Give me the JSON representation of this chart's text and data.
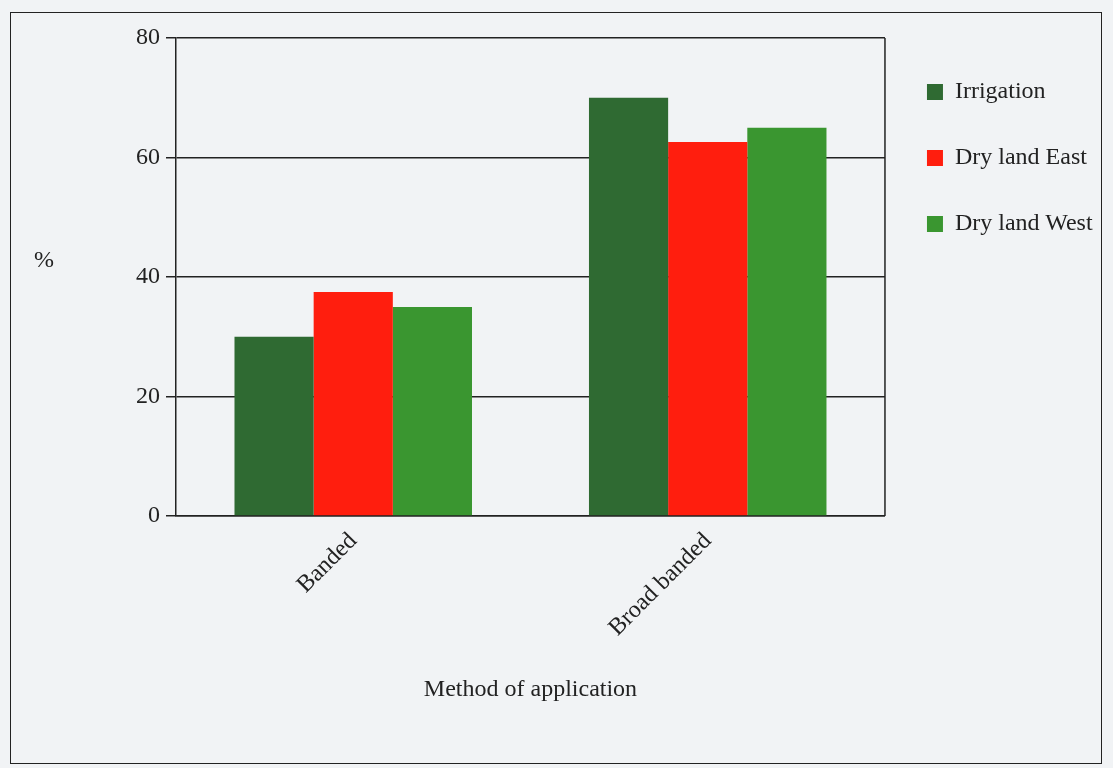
{
  "chart_data": {
    "type": "bar",
    "xlabel": "Method of application",
    "ylabel": "%",
    "categories": [
      "Banded",
      "Broad banded"
    ],
    "series": [
      {
        "name": "Irrigation",
        "color": "#2f6a32",
        "values": [
          30,
          70
        ]
      },
      {
        "name": "Dry land East",
        "color": "#ff1e0e",
        "values": [
          37.5,
          62.6
        ]
      },
      {
        "name": "Dry land West",
        "color": "#3a9630",
        "values": [
          35,
          65
        ]
      }
    ],
    "ylim": [
      0,
      80
    ],
    "yticks": [
      0,
      20,
      40,
      60,
      80
    ],
    "grid": "y",
    "legend": "right"
  }
}
